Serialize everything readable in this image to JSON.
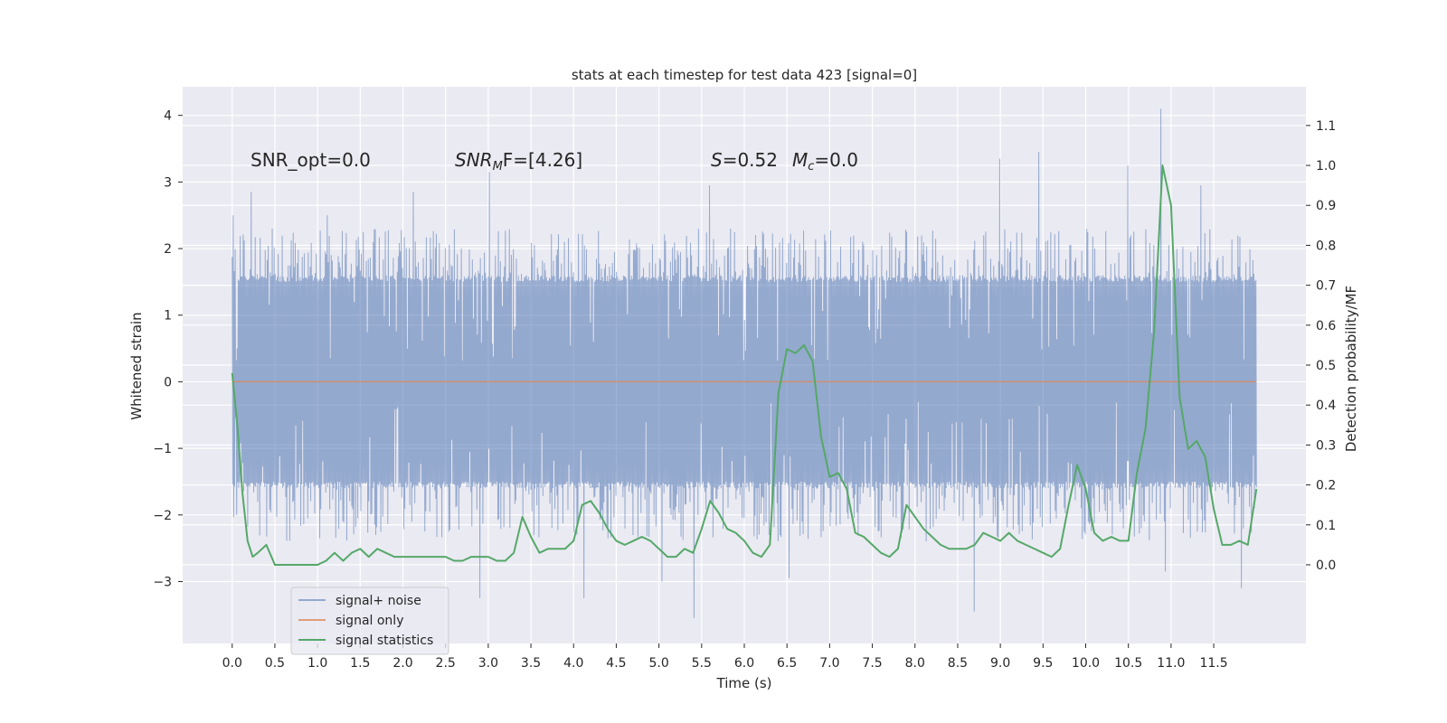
{
  "chart_data": {
    "type": "line",
    "title": "stats at each timestep for test data 423 [signal=0]",
    "xlabel": "Time (s)",
    "ylabel_left": "Whitened strain",
    "ylabel_right": "Detection probability/MF",
    "xlim": [
      -0.58,
      12.58
    ],
    "ylim_left": [
      -3.93,
      4.43
    ],
    "ylim_right": [
      -0.197,
      1.197
    ],
    "x_ticks": [
      0.0,
      0.5,
      1.0,
      1.5,
      2.0,
      2.5,
      3.0,
      3.5,
      4.0,
      4.5,
      5.0,
      5.5,
      6.0,
      6.5,
      7.0,
      7.5,
      8.0,
      8.5,
      9.0,
      9.5,
      10.0,
      10.5,
      11.0,
      11.5
    ],
    "x_tick_labels": [
      "0.0",
      "0.5",
      "1.0",
      "1.5",
      "2.0",
      "2.5",
      "3.0",
      "3.5",
      "4.0",
      "4.5",
      "5.0",
      "5.5",
      "6.0",
      "6.5",
      "7.0",
      "7.5",
      "8.0",
      "8.5",
      "9.0",
      "9.5",
      "10.0",
      "10.5",
      "11.0",
      "11.5"
    ],
    "y_left_ticks": [
      -3,
      -2,
      -1,
      0,
      1,
      2,
      3,
      4
    ],
    "y_left_tick_labels": [
      "−3",
      "−2",
      "−1",
      "0",
      "1",
      "2",
      "3",
      "4"
    ],
    "y_right_ticks": [
      0.0,
      0.1,
      0.2,
      0.3,
      0.4,
      0.5,
      0.6,
      0.7,
      0.8,
      0.9,
      1.0,
      1.1
    ],
    "y_right_tick_labels": [
      "0.0",
      "0.1",
      "0.2",
      "0.3",
      "0.4",
      "0.5",
      "0.6",
      "0.7",
      "0.8",
      "0.9",
      "1.0",
      "1.1"
    ],
    "annotations": {
      "snr_opt": "SNR_opt=0.0",
      "snr_mf_base": "SNR",
      "snr_mf_sub": "M",
      "snr_mf_rest": "F=[4.26]",
      "s_label": "S",
      "s_value": "=0.52",
      "mc_base": "M",
      "mc_sub": "c",
      "mc_value": "=0.0"
    },
    "legend": {
      "position": "lower-left",
      "entries": [
        "signal+ noise",
        "signal only",
        "signal statistics"
      ]
    },
    "colors": {
      "noise": "#4c72b0",
      "signal": "#dd8452",
      "stats": "#55a868",
      "plot_bg": "#eaeaf2",
      "grid": "#ffffff"
    },
    "series": [
      {
        "name": "signal+ noise",
        "axis": "left",
        "x_range": [
          0.0,
          12.0
        ],
        "sample_count": 2048,
        "envelope": {
          "dense_min": -1.5,
          "dense_max": 1.5,
          "typical_peak_max": 2.3,
          "typical_trough_min": -2.4
        },
        "peaks": [
          [
            0.02,
            2.5
          ],
          [
            0.23,
            2.85
          ],
          [
            1.12,
            2.5
          ],
          [
            2.12,
            2.85
          ],
          [
            3.02,
            3.15
          ],
          [
            5.59,
            2.95
          ],
          [
            9.0,
            3.35
          ],
          [
            9.45,
            3.45
          ],
          [
            10.5,
            3.25
          ],
          [
            10.88,
            4.1
          ],
          [
            11.35,
            2.95
          ]
        ],
        "troughs": [
          [
            2.9,
            -3.25
          ],
          [
            4.12,
            -3.25
          ],
          [
            5.03,
            -3.0
          ],
          [
            5.41,
            -3.55
          ],
          [
            6.52,
            -2.95
          ],
          [
            8.69,
            -3.45
          ],
          [
            10.93,
            -2.85
          ],
          [
            11.82,
            -3.1
          ]
        ]
      },
      {
        "name": "signal only",
        "axis": "left",
        "x": [
          0.0,
          12.0
        ],
        "y": [
          0.0,
          0.0
        ]
      },
      {
        "name": "signal statistics",
        "axis": "right",
        "x": [
          0.0,
          0.06,
          0.12,
          0.18,
          0.24,
          0.3,
          0.4,
          0.5,
          0.6,
          0.7,
          0.8,
          0.9,
          1.0,
          1.1,
          1.2,
          1.3,
          1.4,
          1.5,
          1.6,
          1.7,
          1.8,
          1.9,
          2.0,
          2.1,
          2.2,
          2.3,
          2.4,
          2.5,
          2.6,
          2.7,
          2.8,
          2.9,
          3.0,
          3.1,
          3.2,
          3.3,
          3.4,
          3.5,
          3.6,
          3.7,
          3.8,
          3.9,
          4.0,
          4.1,
          4.2,
          4.3,
          4.4,
          4.5,
          4.6,
          4.7,
          4.8,
          4.9,
          5.0,
          5.1,
          5.2,
          5.3,
          5.4,
          5.5,
          5.6,
          5.7,
          5.8,
          5.9,
          6.0,
          6.1,
          6.2,
          6.3,
          6.4,
          6.5,
          6.6,
          6.7,
          6.8,
          6.9,
          7.0,
          7.1,
          7.2,
          7.3,
          7.4,
          7.5,
          7.6,
          7.7,
          7.8,
          7.9,
          8.0,
          8.1,
          8.2,
          8.3,
          8.4,
          8.5,
          8.6,
          8.7,
          8.8,
          8.9,
          9.0,
          9.1,
          9.2,
          9.3,
          9.4,
          9.5,
          9.6,
          9.7,
          9.8,
          9.9,
          10.0,
          10.1,
          10.2,
          10.3,
          10.4,
          10.5,
          10.6,
          10.7,
          10.8,
          10.9,
          11.0,
          11.1,
          11.2,
          11.3,
          11.4,
          11.5,
          11.6,
          11.7,
          11.8,
          11.9,
          12.0
        ],
        "y": [
          0.48,
          0.35,
          0.18,
          0.06,
          0.02,
          0.03,
          0.05,
          0.0,
          0.0,
          0.0,
          0.0,
          0.0,
          0.0,
          0.01,
          0.03,
          0.01,
          0.03,
          0.04,
          0.02,
          0.04,
          0.03,
          0.02,
          0.02,
          0.02,
          0.02,
          0.02,
          0.02,
          0.02,
          0.01,
          0.01,
          0.02,
          0.02,
          0.02,
          0.01,
          0.01,
          0.03,
          0.12,
          0.07,
          0.03,
          0.04,
          0.04,
          0.04,
          0.06,
          0.15,
          0.16,
          0.13,
          0.09,
          0.06,
          0.05,
          0.06,
          0.07,
          0.06,
          0.04,
          0.02,
          0.02,
          0.04,
          0.03,
          0.09,
          0.16,
          0.13,
          0.09,
          0.08,
          0.06,
          0.03,
          0.02,
          0.05,
          0.43,
          0.54,
          0.53,
          0.55,
          0.51,
          0.32,
          0.22,
          0.23,
          0.19,
          0.08,
          0.07,
          0.05,
          0.03,
          0.02,
          0.04,
          0.15,
          0.12,
          0.09,
          0.07,
          0.05,
          0.04,
          0.04,
          0.04,
          0.05,
          0.08,
          0.07,
          0.06,
          0.08,
          0.06,
          0.05,
          0.04,
          0.03,
          0.02,
          0.04,
          0.15,
          0.25,
          0.19,
          0.08,
          0.06,
          0.07,
          0.06,
          0.06,
          0.23,
          0.34,
          0.58,
          1.0,
          0.9,
          0.42,
          0.29,
          0.31,
          0.27,
          0.14,
          0.05,
          0.05,
          0.06,
          0.05,
          0.19
        ]
      }
    ]
  }
}
